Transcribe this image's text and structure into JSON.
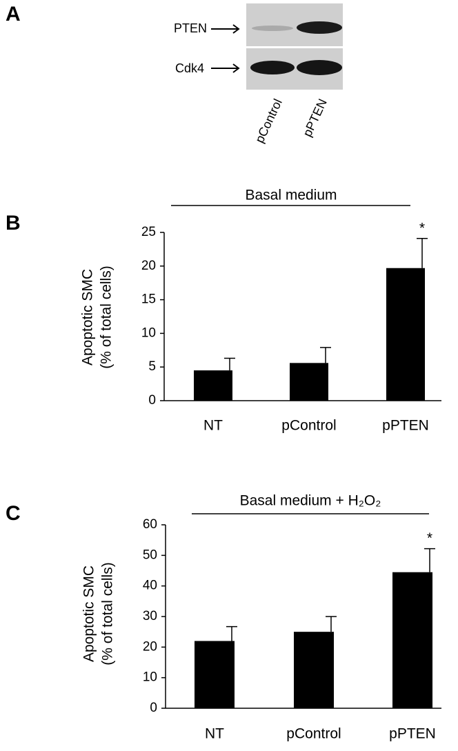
{
  "blot": {
    "panel": "A",
    "bands": [
      "PTEN",
      "Cdk4"
    ],
    "lanes": [
      "pControl",
      "pPTEN"
    ]
  },
  "chart_data": [
    {
      "type": "bar",
      "panel": "B",
      "title": "Basal medium",
      "y_label": [
        "Apoptotic SMC",
        "(% of total cells)"
      ],
      "categories": [
        "NT",
        "pControl",
        "pPTEN"
      ],
      "values": [
        4.5,
        5.6,
        19.7
      ],
      "errors": [
        1.8,
        2.3,
        4.4
      ],
      "color": "#000000",
      "ylim": [
        0,
        25
      ],
      "yticks": [
        0,
        5,
        10,
        15,
        20,
        25
      ],
      "annotation": "*"
    },
    {
      "type": "bar",
      "panel": "C",
      "title": "Basal medium  + H₂O₂",
      "y_label": [
        "Apoptotic SMC",
        "(% of total cells)"
      ],
      "categories": [
        "NT",
        "pControl",
        "pPTEN"
      ],
      "values": [
        22,
        25,
        44.5
      ],
      "errors": [
        4.7,
        5,
        7.7
      ],
      "color": "#000000",
      "ylim": [
        0,
        60
      ],
      "yticks": [
        0,
        10,
        20,
        30,
        40,
        50,
        60
      ],
      "annotation": "*"
    }
  ]
}
